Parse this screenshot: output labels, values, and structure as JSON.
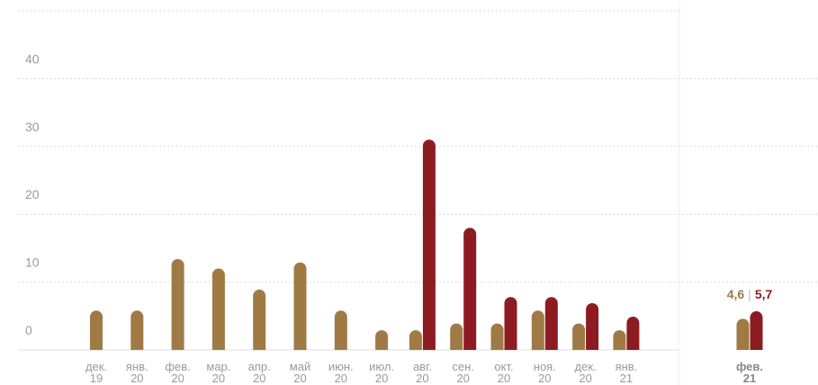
{
  "chart_data": {
    "type": "bar",
    "categories": [
      [
        "дек.",
        "19"
      ],
      [
        "янв.",
        "20"
      ],
      [
        "фев.",
        "20"
      ],
      [
        "мар.",
        "20"
      ],
      [
        "апр.",
        "20"
      ],
      [
        "май",
        "20"
      ],
      [
        "июн.",
        "20"
      ],
      [
        "июл.",
        "20"
      ],
      [
        "авг.",
        "20"
      ],
      [
        "сен.",
        "20"
      ],
      [
        "окт.",
        "20"
      ],
      [
        "ноя.",
        "20"
      ],
      [
        "дек.",
        "20"
      ],
      [
        "янв.",
        "21"
      ],
      [
        "фев.",
        "21"
      ]
    ],
    "series": [
      {
        "color": "#a07a45",
        "values": [
          5.8,
          5.8,
          13.4,
          12,
          8.9,
          12.9,
          5.8,
          2.9,
          2.9,
          3.9,
          3.9,
          5.8,
          3.9,
          2.9,
          4.6
        ],
        "value_labels": [
          null,
          null,
          null,
          null,
          null,
          null,
          null,
          null,
          null,
          null,
          null,
          null,
          null,
          null,
          "4,6"
        ]
      },
      {
        "color": "#8c1c22",
        "values": [
          null,
          null,
          null,
          null,
          null,
          null,
          null,
          null,
          31,
          18,
          7.8,
          7.8,
          6.9,
          4.9,
          5.7
        ],
        "value_labels": [
          null,
          null,
          null,
          null,
          null,
          null,
          null,
          null,
          null,
          null,
          null,
          null,
          null,
          null,
          "5,7"
        ]
      }
    ],
    "ylim": [
      0,
      50
    ],
    "yticks": [
      0,
      10,
      20,
      30,
      40
    ],
    "grid": true
  }
}
